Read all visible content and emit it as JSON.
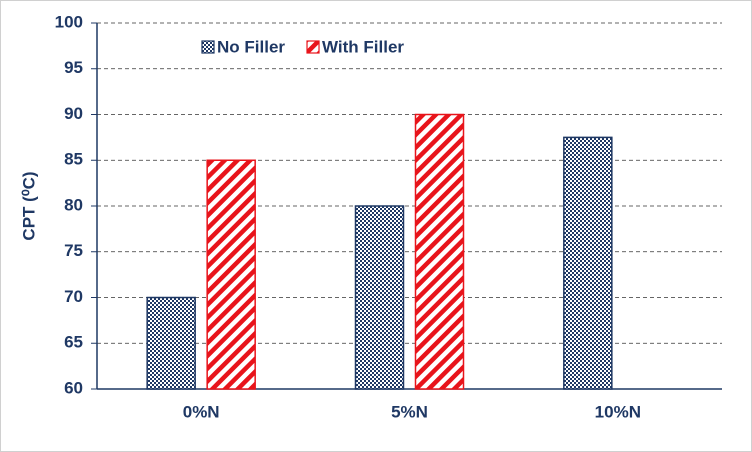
{
  "chart_data": {
    "type": "bar",
    "y_label": "CPT (⁰C)",
    "categories": [
      "0%N",
      "5%N",
      "10%N"
    ],
    "series": [
      {
        "name": "No Filler",
        "color": "#1f3864",
        "pattern": "checker",
        "values": [
          70,
          80,
          87.5
        ]
      },
      {
        "name": "With Filler",
        "color": "#e8141b",
        "pattern": "diagonal",
        "values": [
          85,
          90,
          null
        ]
      }
    ],
    "ylim": [
      60,
      100
    ],
    "yticks": [
      60,
      65,
      70,
      75,
      80,
      85,
      90,
      95,
      100
    ],
    "grid": true,
    "legend": "top"
  }
}
